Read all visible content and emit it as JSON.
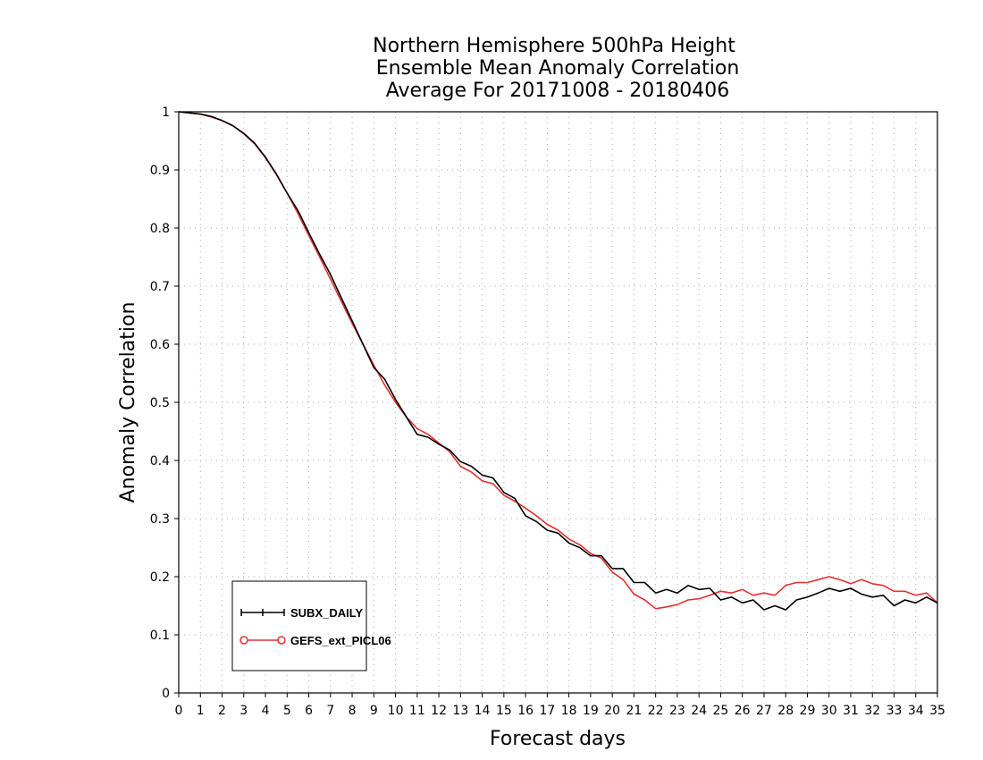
{
  "chart_data": {
    "type": "line",
    "title": [
      "Northern Hemisphere 500hPa Height",
      "Ensemble Mean Anomaly Correlation",
      "Average For 20171008 - 20180406"
    ],
    "xlabel": "Forecast days",
    "ylabel": "Anomaly Correlation",
    "xlim": [
      0,
      35
    ],
    "ylim": [
      0,
      1
    ],
    "x_ticks": [
      "0",
      "1",
      "2",
      "3",
      "4",
      "5",
      "6",
      "7",
      "8",
      "9",
      "10",
      "11",
      "12",
      "13",
      "14",
      "15",
      "16",
      "17",
      "18",
      "19",
      "20",
      "21",
      "22",
      "23",
      "24",
      "25",
      "26",
      "27",
      "28",
      "29",
      "30",
      "31",
      "32",
      "33",
      "34",
      "35"
    ],
    "y_ticks": [
      "0",
      "0.1",
      "0.2",
      "0.3",
      "0.4",
      "0.5",
      "0.6",
      "0.7",
      "0.8",
      "0.9",
      "1"
    ],
    "grid": "dotted",
    "legend_position": "bottom-left",
    "series": [
      {
        "name": "SUBX_DAILY",
        "color": "#000000",
        "marker": "plus",
        "x": [
          0,
          0.5,
          1,
          1.5,
          2,
          2.5,
          3,
          3.5,
          4,
          4.5,
          5,
          5.5,
          6,
          6.5,
          7,
          7.5,
          8,
          8.5,
          9,
          9.5,
          10,
          10.5,
          11,
          11.5,
          12,
          12.5,
          13,
          13.5,
          14,
          14.5,
          15,
          15.5,
          16,
          16.5,
          17,
          17.5,
          18,
          18.5,
          19,
          19.5,
          20,
          20.5,
          21,
          21.5,
          22,
          22.5,
          23,
          23.5,
          24,
          24.5,
          25,
          25.5,
          26,
          26.5,
          27,
          27.5,
          28,
          28.5,
          29,
          29.5,
          30,
          30.5,
          31,
          31.5,
          32,
          32.5,
          33,
          33.5,
          34,
          34.5,
          35
        ],
        "values": [
          1.0,
          0.998,
          0.996,
          0.992,
          0.985,
          0.976,
          0.963,
          0.946,
          0.922,
          0.893,
          0.86,
          0.83,
          0.792,
          0.755,
          0.72,
          0.68,
          0.64,
          0.6,
          0.56,
          0.54,
          0.505,
          0.475,
          0.445,
          0.44,
          0.428,
          0.418,
          0.398,
          0.39,
          0.375,
          0.37,
          0.345,
          0.335,
          0.305,
          0.295,
          0.28,
          0.275,
          0.258,
          0.25,
          0.236,
          0.236,
          0.214,
          0.214,
          0.19,
          0.19,
          0.172,
          0.178,
          0.172,
          0.185,
          0.178,
          0.18,
          0.16,
          0.165,
          0.155,
          0.16,
          0.143,
          0.15,
          0.143,
          0.16,
          0.165,
          0.172,
          0.18,
          0.175,
          0.18,
          0.17,
          0.165,
          0.168,
          0.15,
          0.16,
          0.155,
          0.165,
          0.155
        ]
      },
      {
        "name": "GEFS_ext_PICL06",
        "color": "#e83030",
        "marker": "circle",
        "x": [
          0,
          0.5,
          1,
          1.5,
          2,
          2.5,
          3,
          3.5,
          4,
          4.5,
          5,
          5.5,
          6,
          6.5,
          7,
          7.5,
          8,
          8.5,
          9,
          9.5,
          10,
          10.5,
          11,
          11.5,
          12,
          12.5,
          13,
          13.5,
          14,
          14.5,
          15,
          15.5,
          16,
          16.5,
          17,
          17.5,
          18,
          18.5,
          19,
          19.5,
          20,
          20.5,
          21,
          21.5,
          22,
          22.5,
          23,
          23.5,
          24,
          24.5,
          25,
          25.5,
          26,
          26.5,
          27,
          27.5,
          28,
          28.5,
          29,
          29.5,
          30,
          30.5,
          31,
          31.5,
          32,
          32.5,
          33,
          33.5,
          34,
          34.5,
          35
        ],
        "values": [
          1.0,
          0.998,
          0.996,
          0.991,
          0.985,
          0.976,
          0.962,
          0.945,
          0.921,
          0.892,
          0.86,
          0.825,
          0.787,
          0.75,
          0.712,
          0.674,
          0.636,
          0.6,
          0.564,
          0.53,
          0.5,
          0.475,
          0.455,
          0.445,
          0.43,
          0.415,
          0.39,
          0.38,
          0.365,
          0.36,
          0.34,
          0.33,
          0.318,
          0.305,
          0.29,
          0.28,
          0.265,
          0.255,
          0.24,
          0.232,
          0.208,
          0.195,
          0.17,
          0.16,
          0.145,
          0.148,
          0.152,
          0.16,
          0.162,
          0.168,
          0.175,
          0.172,
          0.178,
          0.168,
          0.172,
          0.168,
          0.185,
          0.19,
          0.19,
          0.195,
          0.2,
          0.195,
          0.188,
          0.195,
          0.188,
          0.185,
          0.175,
          0.175,
          0.168,
          0.172,
          0.155
        ]
      }
    ]
  }
}
